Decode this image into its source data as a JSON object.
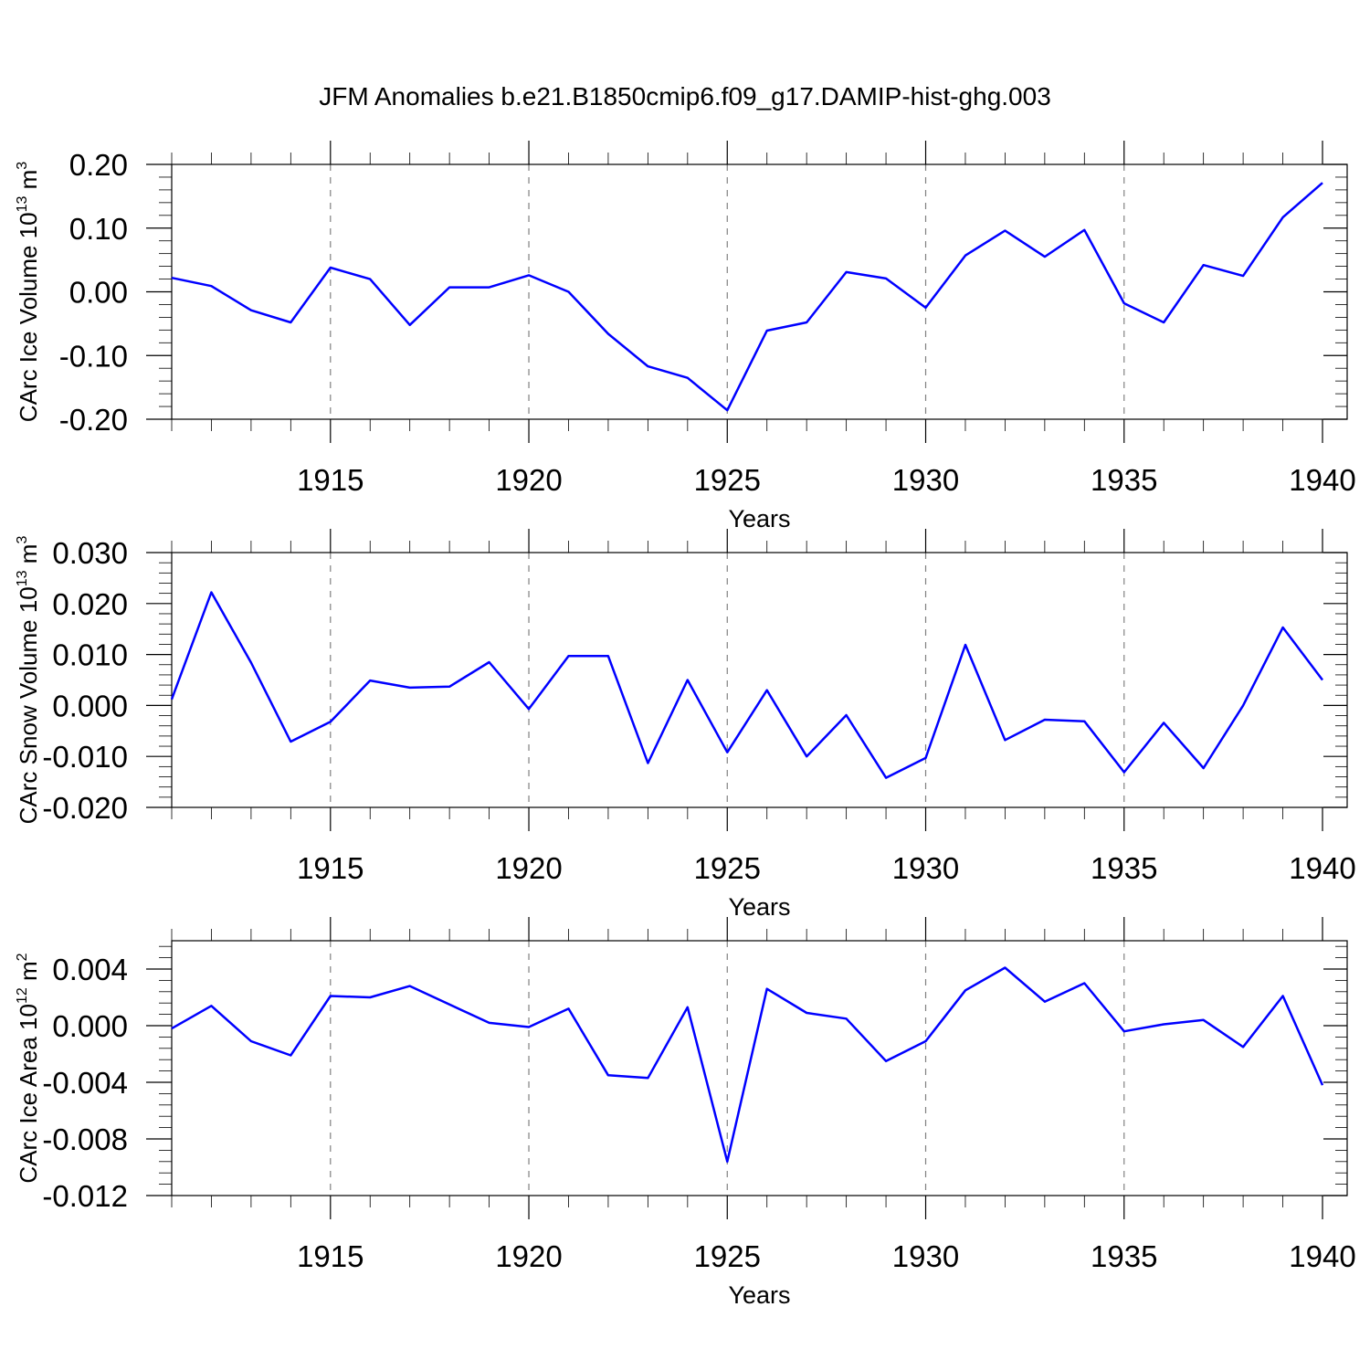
{
  "title": "JFM Anomalies b.e21.B1850cmip6.f09_g17.DAMIP-hist-ghg.003",
  "colors": {
    "series": "#0000ff",
    "grid": "#808080",
    "axes": "#000000"
  },
  "chart_data": [
    {
      "type": "line",
      "ylabel": "CArc Ice Volume 10",
      "ylabel_exp": "13",
      "ylabel_unit": " m",
      "ylabel_unit_exp": "3",
      "xlabel": "Years",
      "xlim": [
        1911,
        1940
      ],
      "ylim": [
        -0.2,
        0.2
      ],
      "xticks": [
        1915,
        1920,
        1925,
        1930,
        1935,
        1940
      ],
      "xtick_labels": [
        "1915",
        "1920",
        "1925",
        "1930",
        "1935",
        "1940"
      ],
      "yticks": [
        -0.2,
        -0.1,
        0.0,
        0.1,
        0.2
      ],
      "ytick_labels": [
        "-0.20",
        "-0.10",
        "0.00",
        "0.10",
        "0.20"
      ],
      "grid": "dashed vertical at major x ticks",
      "x": [
        1911,
        1912,
        1913,
        1914,
        1915,
        1916,
        1917,
        1918,
        1919,
        1920,
        1921,
        1922,
        1923,
        1924,
        1925,
        1926,
        1927,
        1928,
        1929,
        1930,
        1931,
        1932,
        1933,
        1934,
        1935,
        1936,
        1937,
        1938,
        1939,
        1940
      ],
      "series": [
        {
          "values": [
            0.022,
            0.009,
            -0.029,
            -0.048,
            0.038,
            0.02,
            -0.052,
            0.007,
            0.007,
            0.026,
            0.0,
            -0.066,
            -0.117,
            -0.135,
            -0.186,
            -0.061,
            -0.048,
            0.031,
            0.021,
            -0.025,
            0.057,
            0.096,
            0.055,
            0.097,
            -0.018,
            -0.048,
            0.042,
            0.025,
            0.117,
            0.171
          ]
        }
      ]
    },
    {
      "type": "line",
      "ylabel": "CArc Snow Volume 10",
      "ylabel_exp": "13",
      "ylabel_unit": " m",
      "ylabel_unit_exp": "3",
      "xlabel": "Years",
      "xlim": [
        1911,
        1940
      ],
      "ylim": [
        -0.02,
        0.03
      ],
      "xticks": [
        1915,
        1920,
        1925,
        1930,
        1935,
        1940
      ],
      "xtick_labels": [
        "1915",
        "1920",
        "1925",
        "1930",
        "1935",
        "1940"
      ],
      "yticks": [
        -0.02,
        -0.01,
        0.0,
        0.01,
        0.02,
        0.03
      ],
      "ytick_labels": [
        "-0.020",
        "-0.010",
        "0.000",
        "0.010",
        "0.020",
        "0.030"
      ],
      "grid": "dashed vertical at major x ticks",
      "x": [
        1911,
        1912,
        1913,
        1914,
        1915,
        1916,
        1917,
        1918,
        1919,
        1920,
        1921,
        1922,
        1923,
        1924,
        1925,
        1926,
        1927,
        1928,
        1929,
        1930,
        1931,
        1932,
        1933,
        1934,
        1935,
        1936,
        1937,
        1938,
        1939,
        1940
      ],
      "series": [
        {
          "values": [
            0.0012,
            0.0222,
            0.0084,
            -0.0071,
            -0.0032,
            0.0049,
            0.0035,
            0.0037,
            0.0085,
            -0.0007,
            0.0097,
            0.0097,
            -0.0113,
            0.005,
            -0.0092,
            0.003,
            -0.01,
            -0.0019,
            -0.0142,
            -0.0103,
            0.0119,
            -0.0068,
            -0.0028,
            -0.0031,
            -0.0131,
            -0.0034,
            -0.0123,
            0.0,
            0.0153,
            0.005
          ]
        }
      ]
    },
    {
      "type": "line",
      "ylabel": "CArc Ice Area 10",
      "ylabel_exp": "12",
      "ylabel_unit": " m",
      "ylabel_unit_exp": "2",
      "xlabel": "Years",
      "xlim": [
        1911,
        1940
      ],
      "ylim": [
        -0.012,
        0.006
      ],
      "xticks": [
        1915,
        1920,
        1925,
        1930,
        1935,
        1940
      ],
      "xtick_labels": [
        "1915",
        "1920",
        "1925",
        "1930",
        "1935",
        "1940"
      ],
      "yticks": [
        -0.012,
        -0.008,
        -0.004,
        0.0,
        0.004
      ],
      "ytick_labels": [
        "-0.012",
        "-0.008",
        "-0.004",
        "0.000",
        "0.004"
      ],
      "grid": "dashed vertical at major x ticks",
      "x": [
        1911,
        1912,
        1913,
        1914,
        1915,
        1916,
        1917,
        1918,
        1919,
        1920,
        1921,
        1922,
        1923,
        1924,
        1925,
        1926,
        1927,
        1928,
        1929,
        1930,
        1931,
        1932,
        1933,
        1934,
        1935,
        1936,
        1937,
        1938,
        1939,
        1940
      ],
      "series": [
        {
          "values": [
            -0.0002,
            0.0014,
            -0.0011,
            -0.0021,
            0.0021,
            0.002,
            0.0028,
            0.0015,
            0.0002,
            -0.0001,
            0.0012,
            -0.0035,
            -0.0037,
            0.0013,
            -0.0096,
            0.0026,
            0.0009,
            0.0005,
            -0.0025,
            -0.0011,
            0.0025,
            0.0041,
            0.0017,
            0.003,
            -0.0004,
            0.0001,
            0.0004,
            -0.0015,
            0.0021,
            -0.0042
          ]
        }
      ]
    }
  ]
}
